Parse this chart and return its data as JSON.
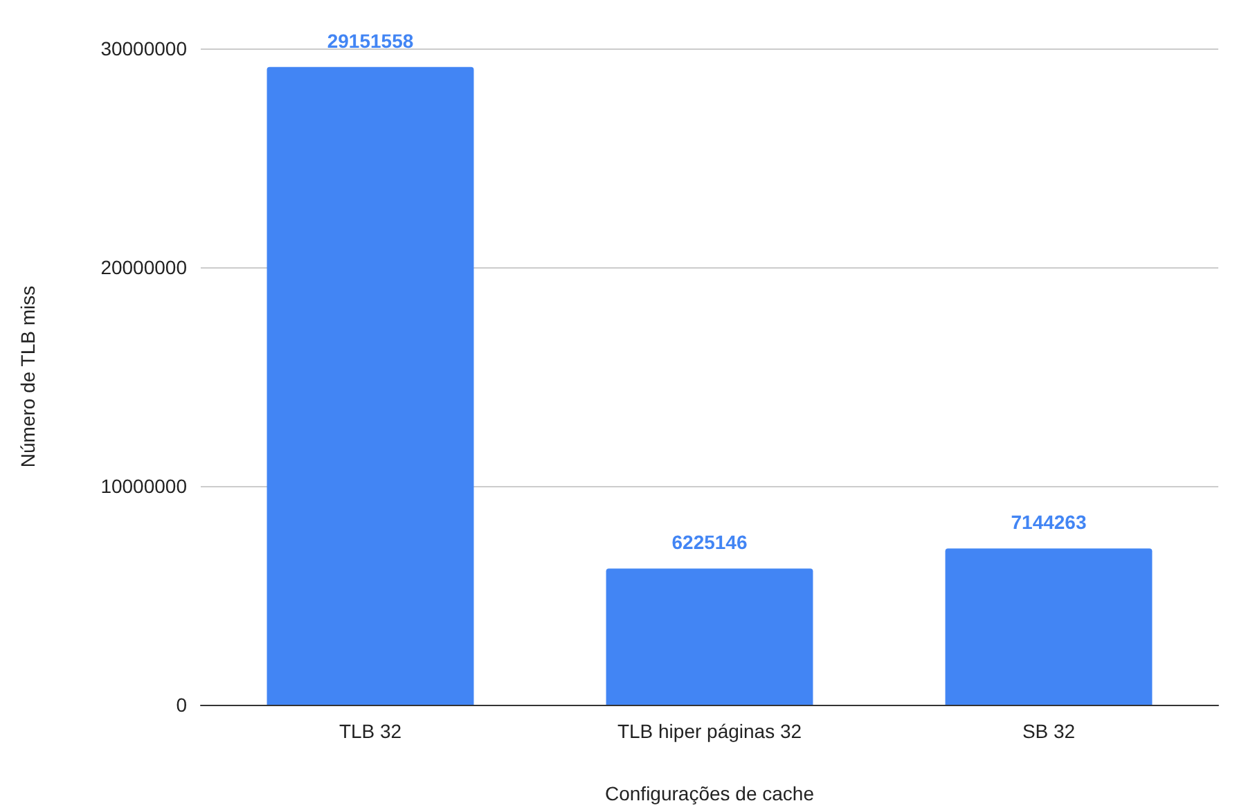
{
  "chart_data": {
    "type": "bar",
    "xlabel": "Configurações de cache",
    "ylabel": "Número de TLB miss",
    "categories": [
      "TLB 32",
      "TLB hiper páginas 32",
      "SB 32"
    ],
    "values": [
      29151558,
      6225146,
      7144263
    ],
    "color": "#4285f4",
    "ylim": [
      0,
      30000000
    ],
    "yticks": [
      0,
      10000000,
      20000000,
      30000000
    ],
    "grid": "y",
    "data_labels": true
  }
}
